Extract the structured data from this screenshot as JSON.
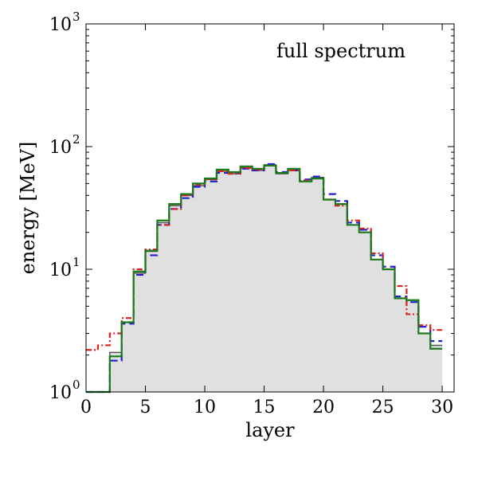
{
  "chart_data": {
    "type": "line",
    "title": "",
    "annotation": "full spectrum",
    "xlabel": "layer",
    "ylabel": "energy [MeV]",
    "xlim": [
      0,
      31
    ],
    "ylim": [
      1,
      1000
    ],
    "yscale": "log",
    "grid": false,
    "xticks": [
      {
        "value": 0,
        "label": "0"
      },
      {
        "value": 5,
        "label": "5"
      },
      {
        "value": 10,
        "label": "10"
      },
      {
        "value": 15,
        "label": "15"
      },
      {
        "value": 20,
        "label": "20"
      },
      {
        "value": 25,
        "label": "25"
      },
      {
        "value": 30,
        "label": "30"
      }
    ],
    "yticks": [
      {
        "value": 1,
        "base": "10",
        "exp": "0"
      },
      {
        "value": 10,
        "base": "10",
        "exp": "1"
      },
      {
        "value": 100,
        "base": "10",
        "exp": "2"
      },
      {
        "value": 1000,
        "base": "10",
        "exp": "3"
      }
    ],
    "bin_edges": [
      0,
      1,
      2,
      3,
      4,
      5,
      6,
      7,
      8,
      9,
      10,
      11,
      12,
      13,
      14,
      15,
      16,
      17,
      18,
      19,
      20,
      21,
      22,
      23,
      24,
      25,
      26,
      27,
      28,
      29,
      30
    ],
    "series": [
      {
        "name": "reference (filled)",
        "style": "filled-step",
        "fill": "#e0e0e0",
        "color": "#555555",
        "values": [
          1,
          1,
          2.1,
          3.7,
          9.3,
          14,
          24,
          33,
          40,
          48,
          54,
          63,
          60,
          67,
          64,
          71,
          60,
          64,
          52,
          56,
          37,
          34,
          23,
          20,
          12,
          10,
          5.8,
          5.6,
          3.0,
          2.4
        ]
      },
      {
        "name": "blue dashed",
        "style": "dashed",
        "color": "#1f1fd0",
        "values": [
          1,
          1,
          1.8,
          3.6,
          9.0,
          13,
          23,
          31,
          38,
          47,
          52,
          61,
          61,
          66,
          64,
          72,
          62,
          64,
          54,
          57,
          41,
          36,
          24,
          21,
          13,
          10.5,
          6.0,
          5.4,
          3.4,
          2.6
        ]
      },
      {
        "name": "red dash-dot",
        "style": "dashdot",
        "color": "#e02020",
        "values": [
          2.2,
          2.4,
          3.0,
          4.0,
          10,
          14.5,
          23,
          31,
          40,
          49,
          54,
          63,
          60,
          67,
          65,
          70,
          61,
          64,
          53,
          55,
          37,
          33,
          25,
          21.5,
          13.5,
          10,
          7.3,
          4.3,
          3.5,
          3.2
        ]
      },
      {
        "name": "green solid",
        "style": "solid",
        "color": "#1a7a1a",
        "values": [
          1,
          1,
          1.95,
          3.7,
          9.6,
          14.2,
          25,
          34,
          41,
          50,
          55,
          65,
          62,
          69,
          66,
          70,
          61,
          66,
          52,
          55,
          37,
          34,
          23,
          20,
          12,
          10,
          5.8,
          5.6,
          3.0,
          2.25
        ]
      }
    ]
  }
}
